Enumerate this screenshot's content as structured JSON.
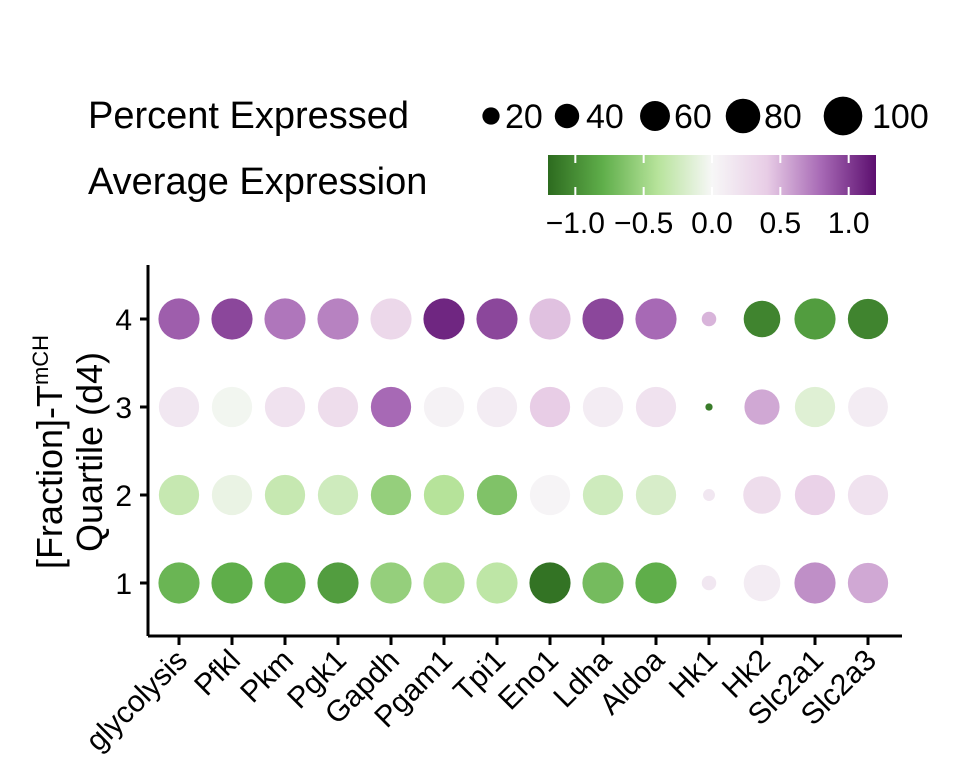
{
  "chart_data": {
    "type": "dotplot",
    "ylabel_line1": "[Fraction]-T",
    "ylabel_superscript": "mCH",
    "ylabel_line2": "Quartile (d4)",
    "categories": [
      "glycolysis",
      "Pfkl",
      "Pkm",
      "Pgk1",
      "Gapdh",
      "Pgam1",
      "Tpi1",
      "Eno1",
      "Ldha",
      "Aldoa",
      "Hk1",
      "Hk2",
      "Slc2a1",
      "Slc2a3"
    ],
    "rows": [
      "1",
      "2",
      "3",
      "4"
    ],
    "size_legend": {
      "title": "Percent Expressed",
      "values": [
        20,
        40,
        60,
        80,
        100
      ],
      "labels": [
        "20",
        "40",
        "60",
        "80",
        "100"
      ]
    },
    "color_legend": {
      "title": "Average Expression",
      "ticks": [
        -1.0,
        -0.5,
        0.0,
        0.5,
        1.0
      ],
      "tick_labels": [
        "−1.0",
        "−0.5",
        "0.0",
        "0.5",
        "1.0"
      ],
      "range": [
        -1.2,
        1.2
      ],
      "colormap": [
        "#2d6b1f",
        "#5fae4a",
        "#b6e39a",
        "#f7f7f7",
        "#e8cde6",
        "#a769b5",
        "#5c0f6f"
      ]
    },
    "series": [
      {
        "name": "4",
        "avg_expression": [
          0.85,
          0.95,
          0.75,
          0.7,
          0.3,
          1.1,
          0.95,
          0.45,
          0.95,
          0.8,
          0.5,
          -1.05,
          -0.9,
          -1.05
        ],
        "percent_expressed": [
          96,
          96,
          96,
          96,
          96,
          96,
          96,
          96,
          96,
          96,
          12,
          76,
          96,
          92
        ]
      },
      {
        "name": "3",
        "avg_expression": [
          0.15,
          -0.03,
          0.2,
          0.25,
          0.8,
          0.05,
          0.1,
          0.4,
          0.1,
          0.2,
          -1.1,
          0.55,
          -0.15,
          0.1
        ],
        "percent_expressed": [
          92,
          92,
          92,
          92,
          92,
          92,
          92,
          92,
          92,
          92,
          3,
          70,
          92,
          90
        ]
      },
      {
        "name": "2",
        "avg_expression": [
          -0.3,
          -0.08,
          -0.3,
          -0.25,
          -0.55,
          -0.4,
          -0.65,
          0.03,
          -0.25,
          -0.2,
          0.15,
          0.25,
          0.35,
          0.2
        ],
        "percent_expressed": [
          92,
          92,
          92,
          92,
          92,
          92,
          92,
          92,
          92,
          92,
          8,
          80,
          92,
          92
        ]
      },
      {
        "name": "1",
        "avg_expression": [
          -0.75,
          -0.8,
          -0.8,
          -0.9,
          -0.55,
          -0.45,
          -0.35,
          -1.15,
          -0.7,
          -0.8,
          0.15,
          0.1,
          0.65,
          0.55
        ],
        "percent_expressed": [
          96,
          96,
          96,
          96,
          96,
          96,
          96,
          96,
          96,
          96,
          12,
          76,
          96,
          92
        ]
      }
    ]
  }
}
